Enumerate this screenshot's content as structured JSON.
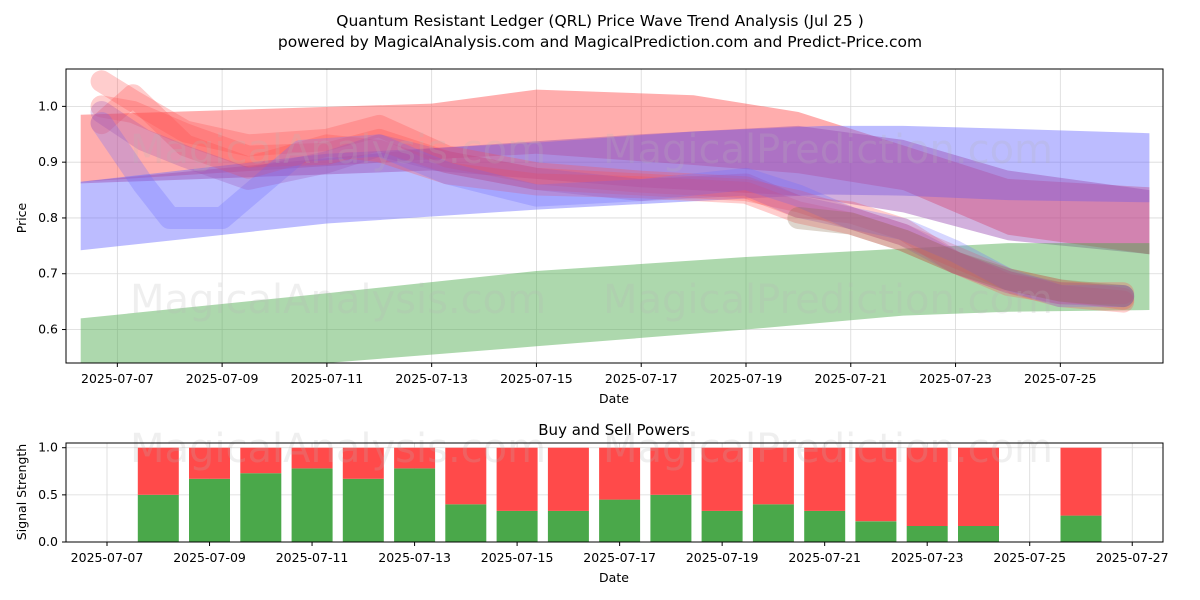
{
  "title_line1": "Quantum Resistant Ledger (QRL) Price Wave Trend Analysis (Jul 25 )",
  "title_line2": "powered by MagicalAnalysis.com and MagicalPrediction.com and Predict-Price.com",
  "watermarks": [
    "MagicalAnalysis.com",
    "MagicalPrediction.com"
  ],
  "colors": {
    "red": "#ff4a4a",
    "blue": "#6b6bff",
    "green": "#4aa84a",
    "buy": "#4aa84a",
    "sell": "#ff4a4a"
  },
  "chart_data": [
    {
      "type": "area",
      "title": "",
      "xlabel": "Date",
      "ylabel": "Price",
      "x_ticks": [
        "2025-07-07",
        "2025-07-09",
        "2025-07-11",
        "2025-07-13",
        "2025-07-15",
        "2025-07-17",
        "2025-07-19",
        "2025-07-21",
        "2025-07-23",
        "2025-07-25"
      ],
      "y_ticks": [
        0.6,
        0.7,
        0.8,
        0.9,
        1.0
      ],
      "ylim": [
        0.54,
        1.067
      ],
      "xlim_days": [
        -0.98,
        19.96
      ],
      "bands": [
        {
          "name": "red-band",
          "color": "red",
          "x": [
            -0.7,
            6,
            8,
            11,
            13,
            15,
            17,
            19.7
          ],
          "upper": [
            0.985,
            1.005,
            1.03,
            1.02,
            0.99,
            0.93,
            0.87,
            0.855
          ],
          "lower": [
            0.865,
            0.905,
            0.915,
            0.895,
            0.88,
            0.85,
            0.77,
            0.735
          ]
        },
        {
          "name": "blue-band",
          "color": "blue",
          "x": [
            -0.7,
            4,
            8,
            11,
            13.5,
            15,
            17,
            19.7
          ],
          "upper": [
            0.865,
            0.915,
            0.935,
            0.955,
            0.965,
            0.965,
            0.96,
            0.952
          ],
          "lower": [
            0.742,
            0.79,
            0.815,
            0.83,
            0.842,
            0.84,
            0.832,
            0.828
          ]
        },
        {
          "name": "purple-band",
          "color": "purple",
          "x": [
            -0.7,
            6,
            10,
            13,
            15,
            17,
            19.7
          ],
          "upper": [
            0.865,
            0.925,
            0.95,
            0.965,
            0.94,
            0.885,
            0.85
          ],
          "lower": [
            0.862,
            0.885,
            0.855,
            0.84,
            0.81,
            0.76,
            0.735
          ]
        },
        {
          "name": "green-band",
          "color": "green",
          "x": [
            -0.7,
            4,
            8,
            12,
            15,
            17,
            19.7
          ],
          "upper": [
            0.62,
            0.665,
            0.705,
            0.73,
            0.745,
            0.755,
            0.755
          ],
          "lower": [
            0.54,
            0.54,
            0.57,
            0.6,
            0.625,
            0.632,
            0.635
          ]
        }
      ],
      "wave_lines": [
        {
          "color": "red",
          "x": [
            -0.3,
            0.3,
            1.3,
            2.5,
            4,
            5,
            6.3,
            8,
            10,
            12,
            13,
            14,
            15,
            16,
            17,
            18,
            19.2
          ],
          "y": [
            1.045,
            1.01,
            0.955,
            0.93,
            0.94,
            0.965,
            0.91,
            0.88,
            0.865,
            0.855,
            0.82,
            0.81,
            0.78,
            0.72,
            0.68,
            0.665,
            0.665
          ]
        },
        {
          "color": "red",
          "x": [
            -0.3,
            0.3,
            1.3,
            2.5,
            4,
            5,
            6.3,
            8,
            10,
            12,
            13,
            14,
            15,
            16,
            17,
            18,
            19.2
          ],
          "y": [
            1.0,
            0.99,
            0.95,
            0.91,
            0.915,
            0.94,
            0.9,
            0.87,
            0.86,
            0.85,
            0.83,
            0.8,
            0.77,
            0.73,
            0.69,
            0.67,
            0.655
          ]
        },
        {
          "color": "red",
          "x": [
            -0.3,
            0.3,
            1.3,
            2.5,
            4,
            5,
            6.3,
            8,
            10,
            12,
            13,
            14,
            15,
            16,
            17,
            18,
            19.2
          ],
          "y": [
            0.97,
            1.02,
            0.93,
            0.89,
            0.93,
            0.92,
            0.88,
            0.86,
            0.855,
            0.845,
            0.81,
            0.79,
            0.76,
            0.72,
            0.685,
            0.66,
            0.65
          ]
        },
        {
          "color": "blue",
          "x": [
            -0.3,
            0.5,
            1.0,
            2.0,
            3.5,
            5,
            6.3,
            8,
            10,
            12,
            13,
            14,
            15,
            16,
            17,
            18,
            19.2
          ],
          "y": [
            0.97,
            0.86,
            0.8,
            0.8,
            0.92,
            0.93,
            0.88,
            0.84,
            0.85,
            0.87,
            0.84,
            0.8,
            0.78,
            0.74,
            0.69,
            0.66,
            0.66
          ]
        },
        {
          "color": "purple",
          "x": [
            -0.3,
            0.5,
            1.3,
            2.5,
            4,
            5,
            6.3,
            8,
            10,
            12,
            13,
            14,
            15,
            16,
            17,
            18,
            19.2
          ],
          "y": [
            0.99,
            0.94,
            0.91,
            0.87,
            0.9,
            0.93,
            0.9,
            0.87,
            0.85,
            0.86,
            0.82,
            0.8,
            0.77,
            0.72,
            0.685,
            0.665,
            0.66
          ]
        },
        {
          "color": "brown",
          "x": [
            13,
            14,
            15,
            16,
            17,
            18,
            19.2
          ],
          "y": [
            0.8,
            0.79,
            0.76,
            0.72,
            0.69,
            0.67,
            0.66
          ]
        }
      ]
    },
    {
      "type": "bar",
      "title": "Buy and Sell Powers",
      "xlabel": "Date",
      "ylabel": "Signal Strength",
      "x_ticks": [
        "2025-07-07",
        "2025-07-09",
        "2025-07-11",
        "2025-07-13",
        "2025-07-15",
        "2025-07-17",
        "2025-07-19",
        "2025-07-21",
        "2025-07-23",
        "2025-07-25",
        "2025-07-27"
      ],
      "y_ticks": [
        0.0,
        0.5,
        1.0
      ],
      "ylim": [
        0,
        1.05
      ],
      "xlim_days": [
        -0.8,
        20.6
      ],
      "categories": [
        "2025-07-08",
        "2025-07-09",
        "2025-07-10",
        "2025-07-11",
        "2025-07-12",
        "2025-07-13",
        "2025-07-14",
        "2025-07-15",
        "2025-07-16",
        "2025-07-17",
        "2025-07-18",
        "2025-07-19",
        "2025-07-20",
        "2025-07-21",
        "2025-07-22",
        "2025-07-23",
        "2025-07-24",
        "2025-07-26"
      ],
      "series": [
        {
          "name": "Buy",
          "color": "buy",
          "values": [
            0.5,
            0.67,
            0.73,
            0.78,
            0.67,
            0.78,
            0.4,
            0.33,
            0.33,
            0.45,
            0.5,
            0.33,
            0.4,
            0.33,
            0.22,
            0.17,
            0.17,
            0.28
          ]
        },
        {
          "name": "Sell",
          "color": "sell",
          "values": [
            0.5,
            0.33,
            0.27,
            0.22,
            0.33,
            0.22,
            0.6,
            0.67,
            0.67,
            0.55,
            0.5,
            0.67,
            0.6,
            0.67,
            0.78,
            0.83,
            0.83,
            0.72
          ]
        }
      ]
    }
  ]
}
